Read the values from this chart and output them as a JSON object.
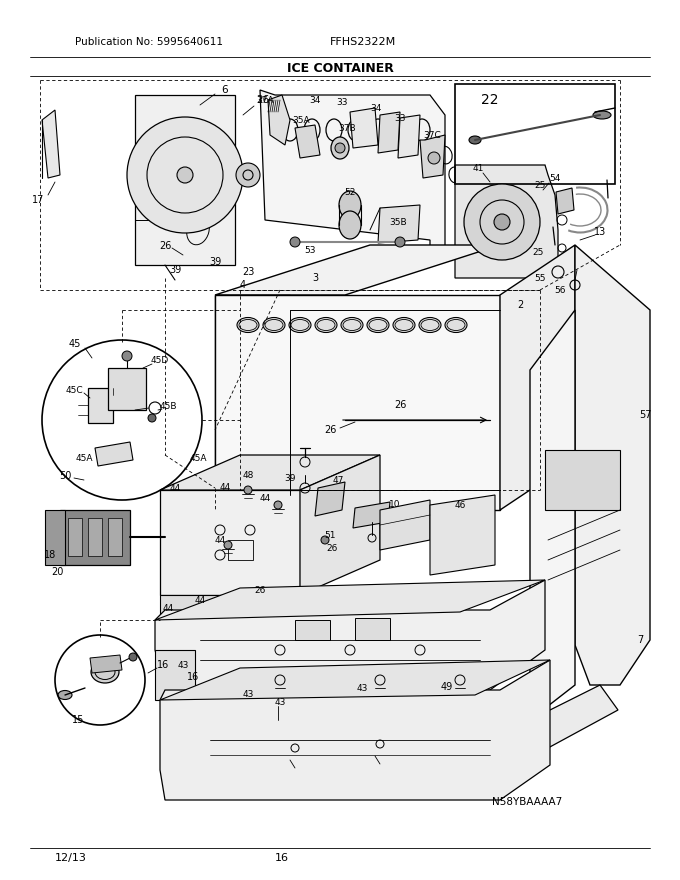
{
  "title": "ICE CONTAINER",
  "pub_no": "Publication No: 5995640611",
  "model": "FFHS2322M",
  "page": "16",
  "date": "12/13",
  "part_id": "N58YBAAAA7",
  "bg_color": "#ffffff",
  "fig_width": 6.8,
  "fig_height": 8.8
}
